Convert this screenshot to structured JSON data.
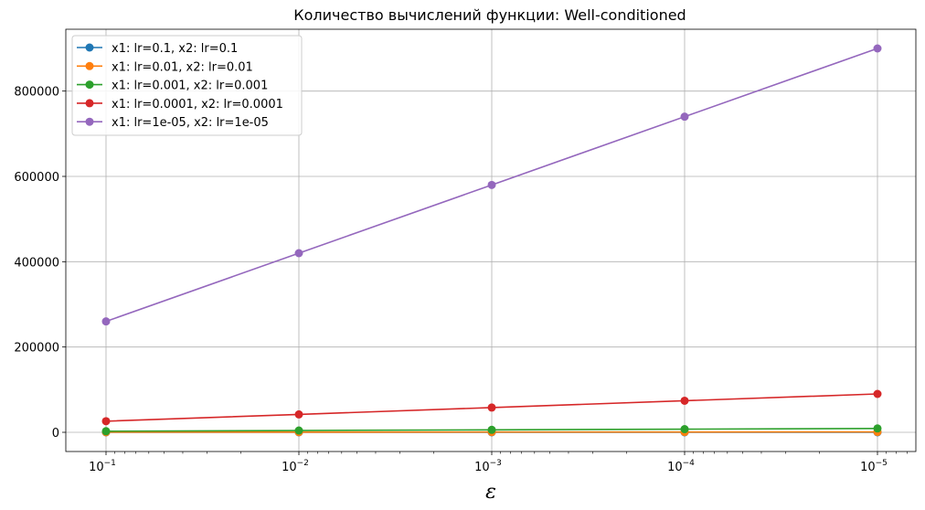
{
  "chart_data": {
    "type": "line",
    "title": "Количество вычислений функции: Well-conditioned",
    "xlabel": "ε",
    "ylabel": "",
    "x_scale": "log",
    "x_reversed": true,
    "x": [
      0.1,
      0.01,
      0.001,
      0.0001,
      1e-05
    ],
    "x_tick_labels": [
      {
        "base": "10",
        "exp": "−1"
      },
      {
        "base": "10",
        "exp": "−2"
      },
      {
        "base": "10",
        "exp": "−3"
      },
      {
        "base": "10",
        "exp": "−4"
      },
      {
        "base": "10",
        "exp": "−5"
      }
    ],
    "y_ticks": [
      0,
      200000,
      400000,
      600000,
      800000
    ],
    "y_tick_labels": [
      "0",
      "200000",
      "400000",
      "600000",
      "800000"
    ],
    "ylim": [
      -45000,
      945000
    ],
    "grid": true,
    "legend_position": "top-left",
    "series": [
      {
        "name": "x1: lr=0.1, x2: lr=0.1",
        "color": "#1f77b4",
        "values": [
          26,
          42,
          58,
          74,
          90
        ]
      },
      {
        "name": "x1: lr=0.01, x2: lr=0.01",
        "color": "#ff7f0e",
        "values": [
          260,
          420,
          580,
          740,
          900
        ]
      },
      {
        "name": "x1: lr=0.001, x2: lr=0.001",
        "color": "#2ca02c",
        "values": [
          2600,
          4200,
          5800,
          7400,
          9000
        ]
      },
      {
        "name": "x1: lr=0.0001, x2: lr=0.0001",
        "color": "#d62728",
        "values": [
          26000,
          42000,
          58000,
          74000,
          90000
        ]
      },
      {
        "name": "x1: lr=1e-05, x2: lr=1e-05",
        "color": "#9467bd",
        "values": [
          260000,
          420000,
          580000,
          740000,
          900000
        ]
      }
    ]
  }
}
